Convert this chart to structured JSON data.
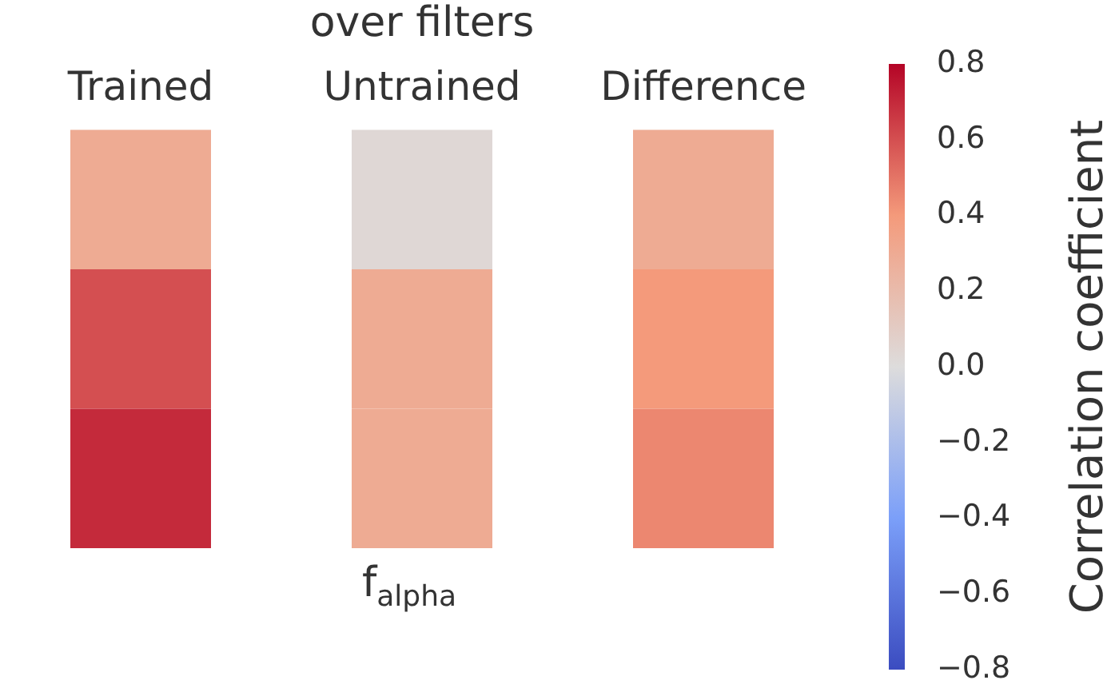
{
  "chart_data": {
    "type": "heatmap",
    "title": "over filters",
    "xlabel": "f$_{alpha}$",
    "categories": [
      "Trained",
      "Untrained",
      "Difference"
    ],
    "y_categories": [
      null,
      null,
      null
    ],
    "cells": [
      [
        0.3,
        0.03,
        0.3
      ],
      [
        0.6,
        0.3,
        0.4
      ],
      [
        0.7,
        0.3,
        0.45
      ]
    ],
    "clim": [
      -0.8,
      0.8
    ],
    "cticks": [
      -0.8,
      -0.6,
      -0.4,
      -0.2,
      {
        "value": 0,
        "label": "0.0"
      },
      0.2,
      0.4,
      0.6,
      0.8
    ],
    "clabel": "Correlation coefficient"
  }
}
